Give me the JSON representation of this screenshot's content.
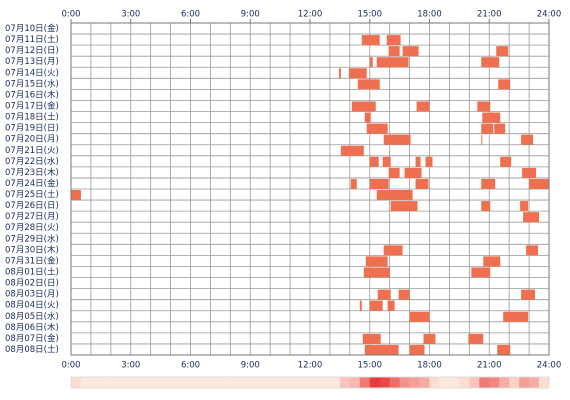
{
  "chart_data": {
    "type": "timeline",
    "categories": [
      "07月10日(金)",
      "07月11日(土)",
      "07月12日(日)",
      "07月13日(月)",
      "07月14日(火)",
      "07月15日(水)",
      "07月16日(木)",
      "07月17日(金)",
      "07月18日(土)",
      "07月19日(日)",
      "07月20日(月)",
      "07月21日(火)",
      "07月22日(水)",
      "07月23日(木)",
      "07月24日(金)",
      "07月25日(土)",
      "07月26日(日)",
      "07月27日(月)",
      "07月28日(火)",
      "07月29日(水)",
      "07月30日(木)",
      "07月31日(金)",
      "08月01日(土)",
      "08月02日(日)",
      "08月03日(月)",
      "08月04日(火)",
      "08月05日(水)",
      "08月06日(木)",
      "08月07日(金)",
      "08月08日(土)"
    ],
    "intervals": [
      [],
      [
        [
          14.6,
          15.5
        ],
        [
          15.85,
          16.55
        ]
      ],
      [
        [
          15.95,
          16.5
        ],
        [
          16.65,
          17.45
        ],
        [
          21.35,
          21.95
        ]
      ],
      [
        [
          15.0,
          15.15
        ],
        [
          15.35,
          16.95
        ],
        [
          20.6,
          21.5
        ]
      ],
      [
        [
          13.45,
          13.55
        ],
        [
          13.95,
          14.85
        ]
      ],
      [
        [
          14.4,
          15.5
        ],
        [
          21.45,
          22.05
        ]
      ],
      [],
      [
        [
          14.1,
          15.3
        ],
        [
          17.35,
          18.0
        ],
        [
          20.4,
          21.05
        ]
      ],
      [
        [
          14.75,
          15.05
        ],
        [
          20.65,
          21.55
        ]
      ],
      [
        [
          14.85,
          15.9
        ],
        [
          20.6,
          21.2
        ],
        [
          21.25,
          21.8
        ]
      ],
      [
        [
          15.7,
          17.05
        ],
        [
          20.6,
          20.65
        ],
        [
          22.6,
          23.2
        ]
      ],
      [
        [
          13.55,
          14.7
        ]
      ],
      [
        [
          15.0,
          15.45
        ],
        [
          15.65,
          16.05
        ],
        [
          17.3,
          17.55
        ],
        [
          17.8,
          18.15
        ],
        [
          21.55,
          22.1
        ]
      ],
      [
        [
          15.95,
          16.5
        ],
        [
          16.75,
          17.6
        ],
        [
          22.65,
          23.35
        ]
      ],
      [
        [
          14.05,
          14.35
        ],
        [
          15.0,
          15.95
        ],
        [
          17.3,
          17.95
        ],
        [
          20.6,
          21.3
        ],
        [
          23.0,
          24.0
        ]
      ],
      [
        [
          0,
          0.5
        ],
        [
          15.35,
          17.15
        ]
      ],
      [
        [
          16.05,
          17.4
        ],
        [
          20.6,
          21.05
        ],
        [
          22.55,
          22.95
        ]
      ],
      [
        [
          22.7,
          23.5
        ]
      ],
      [],
      [],
      [
        [
          15.7,
          16.65
        ],
        [
          22.85,
          23.45
        ]
      ],
      [
        [
          14.8,
          15.9
        ],
        [
          20.7,
          21.55
        ]
      ],
      [
        [
          14.7,
          16.0
        ],
        [
          20.1,
          21.05
        ]
      ],
      [],
      [
        [
          15.4,
          16.05
        ],
        [
          16.45,
          17.0
        ],
        [
          22.6,
          23.3
        ]
      ],
      [
        [
          14.5,
          14.6
        ],
        [
          15.0,
          15.65
        ],
        [
          15.9,
          16.25
        ]
      ],
      [
        [
          17.0,
          18.0
        ],
        [
          21.7,
          22.95
        ]
      ],
      [],
      [
        [
          14.65,
          15.55
        ],
        [
          17.7,
          18.3
        ],
        [
          19.95,
          20.7
        ]
      ],
      [
        [
          14.75,
          16.45
        ],
        [
          17.0,
          17.75
        ],
        [
          21.4,
          22.05
        ]
      ]
    ],
    "color": "#ee7050",
    "xlim": [
      0,
      24
    ],
    "xticks": [
      {
        "value": 0,
        "label": "0:00"
      },
      {
        "value": 3,
        "label": "3:00"
      },
      {
        "value": 6,
        "label": "6:00"
      },
      {
        "value": 9,
        "label": "9:00"
      },
      {
        "value": 12,
        "label": "12:00"
      },
      {
        "value": 15,
        "label": "15:00"
      },
      {
        "value": 18,
        "label": "18:00"
      },
      {
        "value": 21,
        "label": "21:00"
      },
      {
        "value": 24,
        "label": "24:00"
      }
    ],
    "xgrid": [
      0,
      1,
      2,
      3,
      4,
      5,
      6,
      7,
      8,
      9,
      10,
      11,
      12,
      13,
      14,
      15,
      16,
      17,
      18,
      19,
      20,
      21,
      22,
      23,
      24
    ],
    "heatmap": [
      1,
      0,
      0,
      0,
      0,
      0,
      0,
      0,
      0,
      0,
      0,
      0,
      0,
      0,
      0,
      0,
      0,
      0,
      0,
      0,
      0,
      0,
      0,
      0,
      0,
      0,
      0,
      3,
      4,
      9,
      14,
      13,
      10,
      7,
      6,
      5,
      1,
      0,
      0,
      1,
      3,
      9,
      8,
      5,
      2,
      6,
      5,
      1
    ]
  }
}
